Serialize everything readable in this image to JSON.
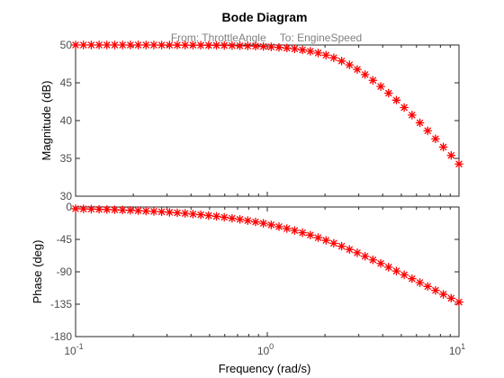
{
  "chart_data": {
    "type": "scatter",
    "title": "Bode Diagram",
    "subtitle_from": "From: ThrottleAngle",
    "subtitle_to": "To: EngineSpeed",
    "xlabel": "Frequency  (rad/s)",
    "xscale": "log",
    "xlim": [
      0.1,
      10
    ],
    "x_tick_labels": [
      {
        "base": "10",
        "exp": "-1"
      },
      {
        "base": "10",
        "exp": "0"
      },
      {
        "base": "10",
        "exp": "1"
      }
    ],
    "marker": "*",
    "marker_color": "#ff0000",
    "grid": false,
    "panels": [
      {
        "name": "magnitude",
        "ylabel": "Magnitude (dB)",
        "ylim": [
          30,
          50
        ],
        "yticks": [
          30,
          35,
          40,
          45,
          50
        ],
        "ytick_labels": [
          "30",
          "35",
          "40",
          "45",
          "50"
        ]
      },
      {
        "name": "phase",
        "ylabel": "Phase (deg)",
        "ylim": [
          -180,
          0
        ],
        "yticks": [
          -180,
          -135,
          -90,
          -45,
          0
        ],
        "ytick_labels": [
          "-180",
          "-135",
          "-90",
          "-45",
          "0"
        ]
      }
    ],
    "series": [
      {
        "panel": "magnitude",
        "x": [
          0.1,
          0.1099,
          0.1207,
          0.1326,
          0.1456,
          0.16,
          0.1758,
          0.1931,
          0.2121,
          0.233,
          0.256,
          0.2812,
          0.3089,
          0.3393,
          0.3728,
          0.4095,
          0.4498,
          0.4942,
          0.5429,
          0.5964,
          0.6551,
          0.7197,
          0.7906,
          0.8685,
          0.9541,
          1.048,
          1.151,
          1.265,
          1.389,
          1.526,
          1.677,
          1.842,
          2.024,
          2.223,
          2.442,
          2.683,
          2.947,
          3.237,
          3.556,
          3.907,
          4.292,
          4.715,
          5.179,
          5.69,
          6.251,
          6.866,
          7.543,
          8.286,
          9.103,
          10.0
        ],
        "y": [
          50.0,
          50.0,
          50.0,
          50.0,
          50.0,
          50.0,
          50.0,
          50.0,
          50.0,
          50.0,
          50.0,
          49.99,
          49.99,
          49.99,
          49.98,
          49.98,
          49.97,
          49.96,
          49.95,
          49.94,
          49.92,
          49.9,
          49.88,
          49.85,
          49.8,
          49.75,
          49.68,
          49.6,
          49.49,
          49.35,
          49.17,
          48.94,
          48.66,
          48.31,
          47.88,
          47.37,
          46.77,
          46.09,
          45.33,
          44.51,
          43.63,
          42.7,
          41.73,
          40.73,
          39.71,
          38.66,
          37.59,
          36.5,
          35.39,
          34.26
        ]
      },
      {
        "panel": "phase",
        "x": [
          0.1,
          0.1099,
          0.1207,
          0.1326,
          0.1456,
          0.16,
          0.1758,
          0.1931,
          0.2121,
          0.233,
          0.256,
          0.2812,
          0.3089,
          0.3393,
          0.3728,
          0.4095,
          0.4498,
          0.4942,
          0.5429,
          0.5964,
          0.6551,
          0.7197,
          0.7906,
          0.8685,
          0.9541,
          1.048,
          1.151,
          1.265,
          1.389,
          1.526,
          1.677,
          1.842,
          2.024,
          2.223,
          2.442,
          2.683,
          2.947,
          3.237,
          3.556,
          3.907,
          4.292,
          4.715,
          5.179,
          5.69,
          6.251,
          6.866,
          7.543,
          8.286,
          9.103,
          10.0
        ],
        "y": [
          -2.4,
          -2.6,
          -2.9,
          -3.2,
          -3.5,
          -3.8,
          -4.2,
          -4.6,
          -5.1,
          -5.6,
          -6.1,
          -6.7,
          -7.4,
          -8.1,
          -8.9,
          -9.8,
          -10.8,
          -11.9,
          -13.0,
          -14.3,
          -15.7,
          -17.2,
          -18.9,
          -20.7,
          -22.7,
          -24.9,
          -27.3,
          -29.9,
          -32.7,
          -35.8,
          -39.0,
          -42.6,
          -46.3,
          -50.3,
          -54.5,
          -59.0,
          -63.6,
          -68.4,
          -73.4,
          -78.4,
          -83.6,
          -88.9,
          -94.2,
          -99.6,
          -105.0,
          -110.4,
          -115.8,
          -121.3,
          -126.7,
          -132.0
        ]
      }
    ]
  }
}
